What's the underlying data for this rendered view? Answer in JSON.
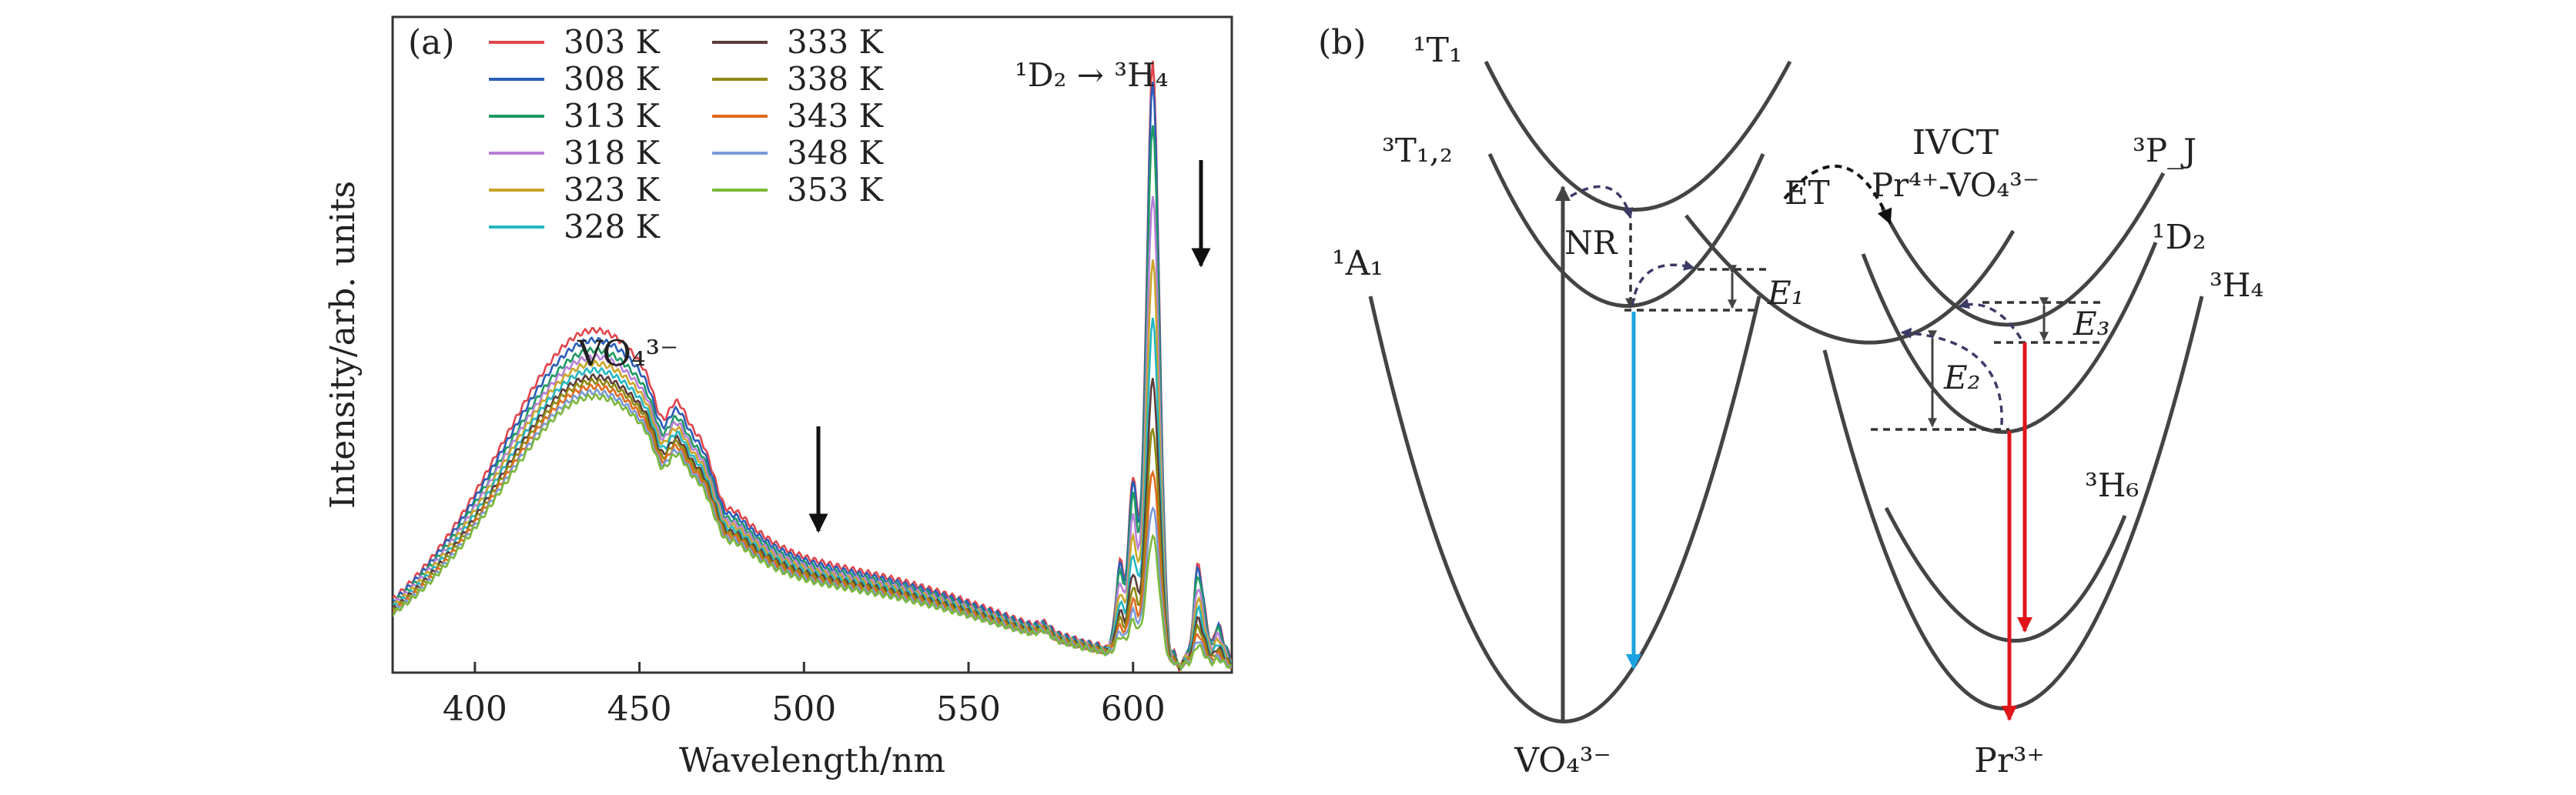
{
  "chart_data": [
    {
      "type": "line",
      "panel_label": "(a)",
      "xlabel": "Wavelength/nm",
      "ylabel": "Intensity/arb. units",
      "xlim": [
        375,
        630
      ],
      "ylim": [
        0,
        1
      ],
      "xticks": [
        400,
        450,
        500,
        550,
        600
      ],
      "ytick_labels_shown": false,
      "legend_position": "top-left",
      "annotations": {
        "host_band": "VO₄³⁻",
        "transition": "¹D₂ → ³H₄",
        "trend": "intensity decreases with temperature (downward arrows at 505 nm and 620 nm)"
      },
      "series": [
        {
          "name": "303 K",
          "color": "#e0454b",
          "vo4_peak": 0.515,
          "pr_peak": 1.0
        },
        {
          "name": "308 K",
          "color": "#2a5db8",
          "vo4_peak": 0.5,
          "pr_peak": 0.97
        },
        {
          "name": "313 K",
          "color": "#1f9a63",
          "vo4_peak": 0.485,
          "pr_peak": 0.9
        },
        {
          "name": "318 K",
          "color": "#b77fd8",
          "vo4_peak": 0.475,
          "pr_peak": 0.78
        },
        {
          "name": "323 K",
          "color": "#c9a62a",
          "vo4_peak": 0.465,
          "pr_peak": 0.67
        },
        {
          "name": "328 K",
          "color": "#25b7c3",
          "vo4_peak": 0.455,
          "pr_peak": 0.57
        },
        {
          "name": "333 K",
          "color": "#5c3b3b",
          "vo4_peak": 0.445,
          "pr_peak": 0.47
        },
        {
          "name": "338 K",
          "color": "#8e8a10",
          "vo4_peak": 0.438,
          "pr_peak": 0.39
        },
        {
          "name": "343 K",
          "color": "#e06a1d",
          "vo4_peak": 0.43,
          "pr_peak": 0.32
        },
        {
          "name": "348 K",
          "color": "#7a9ad8",
          "vo4_peak": 0.422,
          "pr_peak": 0.26
        },
        {
          "name": "353 K",
          "color": "#7cb83a",
          "vo4_peak": 0.415,
          "pr_peak": 0.21
        }
      ]
    },
    {
      "type": "diagram",
      "panel_label": "(b)",
      "description": "Configurational coordinate energy-level diagram",
      "labels": {
        "t1_singlet": "¹T₁",
        "t12_triplet": "³T₁,₂",
        "a1": "¹A₁",
        "ivct_title": "IVCT",
        "ivct_pair": "Pr⁴⁺-VO₄³⁻",
        "p_j": "³P_J",
        "d2": "¹D₂",
        "h4": "³H₄",
        "h6": "³H₆",
        "nr": "NR",
        "et": "ET",
        "e1": "E₁",
        "e2": "E₂",
        "e3": "E₃",
        "vo4_ion": "VO₄³⁻",
        "pr_ion": "Pr³⁺"
      }
    }
  ]
}
